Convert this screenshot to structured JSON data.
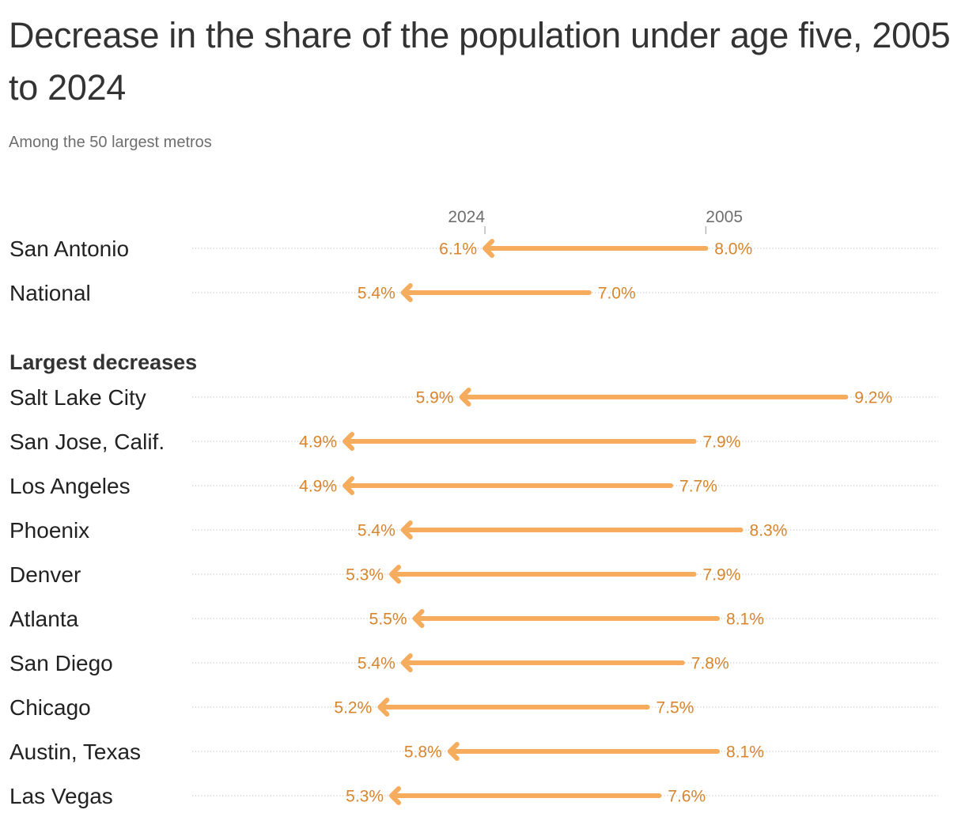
{
  "header": {
    "title": "Decrease in the share of the population under age five, 2005 to 2024",
    "subtitle": "Among the 50 largest metros"
  },
  "colors": {
    "arrow": "#f5ac5c",
    "value_text": "#d8852d",
    "gridline": "#c8c8c8"
  },
  "chart_data": {
    "type": "arrow",
    "unit": "%",
    "series_years": [
      "2005",
      "2024"
    ],
    "year_markers": [
      {
        "year": "2024",
        "row": 0,
        "end": "to"
      },
      {
        "year": "2005",
        "row": 0,
        "end": "from"
      }
    ],
    "section_label": "Largest decreases",
    "section_starts_at_row": 2,
    "rows": [
      {
        "label": "San Antonio",
        "from": 8.0,
        "to": 6.1
      },
      {
        "label": "National",
        "from": 7.0,
        "to": 5.4
      },
      {
        "label": "Salt Lake City",
        "from": 9.2,
        "to": 5.9
      },
      {
        "label": "San Jose, Calif.",
        "from": 7.9,
        "to": 4.9
      },
      {
        "label": "Los Angeles",
        "from": 7.7,
        "to": 4.9
      },
      {
        "label": "Phoenix",
        "from": 8.3,
        "to": 5.4
      },
      {
        "label": "Denver",
        "from": 7.9,
        "to": 5.3
      },
      {
        "label": "Atlanta",
        "from": 8.1,
        "to": 5.5
      },
      {
        "label": "San Diego",
        "from": 7.8,
        "to": 5.4
      },
      {
        "label": "Chicago",
        "from": 7.5,
        "to": 5.2
      },
      {
        "label": "Austin, Texas",
        "from": 8.1,
        "to": 5.8
      },
      {
        "label": "Las Vegas",
        "from": 7.6,
        "to": 5.3
      }
    ]
  }
}
